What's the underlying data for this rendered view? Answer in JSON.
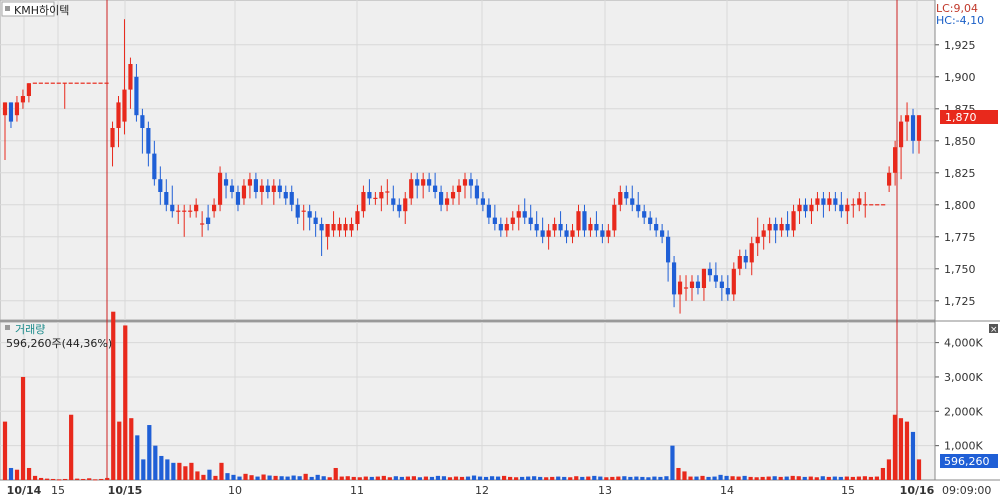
{
  "price_panel": {
    "title": "KMH하이텍",
    "lc_label": "LC:9,04",
    "hc_label": "HC:-4,10",
    "current_price_label": "1,870"
  },
  "volume_panel": {
    "title": "거래량",
    "current_volume_label": "596,260주(44,36%)",
    "current_volume_value_label": "596,260"
  },
  "time_axis": {
    "time_label": "09:09:00"
  },
  "colors": {
    "up": "#e8291c",
    "down": "#1f5fd6",
    "day_separator": "#cc2222",
    "grid": "#d8d8d8",
    "panel_bg": "#efefef",
    "current_price_bg": "#e8291c",
    "current_volume_bg": "#1f5fd6",
    "axis_text": "#333333",
    "title_text_blue": "#1a5fc7",
    "title_text_teal": "#1a8a8a"
  },
  "chart_data": [
    {
      "type": "candlestick",
      "ylim": [
        1710,
        1960
      ],
      "y_ticks": [
        1725,
        1750,
        1775,
        1800,
        1825,
        1850,
        1875,
        1900,
        1925
      ],
      "y_tick_labels": [
        "1,725",
        "1,750",
        "1,775",
        "1,800",
        "1,825",
        "1,850",
        "1,875",
        "1,900",
        "1,925"
      ],
      "x_ticks": [
        "10/14",
        "15",
        "10/15",
        "10",
        "11",
        "12",
        "13",
        "14",
        "15",
        "10/16"
      ],
      "ohlc": [
        [
          1870,
          1880,
          1835,
          1880
        ],
        [
          1880,
          1880,
          1860,
          1865
        ],
        [
          1870,
          1885,
          1865,
          1880
        ],
        [
          1880,
          1890,
          1875,
          1885
        ],
        [
          1885,
          1895,
          1880,
          1895
        ],
        [
          1895,
          1895,
          1895,
          1895
        ],
        [
          1895,
          1895,
          1895,
          1895
        ],
        [
          1895,
          1895,
          1895,
          1895
        ],
        [
          1895,
          1895,
          1895,
          1895
        ],
        [
          1895,
          1895,
          1895,
          1895
        ],
        [
          1895,
          1895,
          1875,
          1895
        ],
        [
          1895,
          1895,
          1895,
          1895
        ],
        [
          1895,
          1895,
          1895,
          1895
        ],
        [
          1895,
          1895,
          1895,
          1895
        ],
        [
          1895,
          1895,
          1895,
          1895
        ],
        [
          1895,
          1895,
          1895,
          1895
        ],
        [
          1895,
          1895,
          1895,
          1895
        ],
        [
          1895,
          1895,
          1895,
          1895
        ],
        [
          1845,
          1865,
          1830,
          1860
        ],
        [
          1860,
          1885,
          1845,
          1880
        ],
        [
          1865,
          1945,
          1855,
          1890
        ],
        [
          1890,
          1915,
          1875,
          1910
        ],
        [
          1900,
          1910,
          1865,
          1870
        ],
        [
          1870,
          1875,
          1840,
          1860
        ],
        [
          1860,
          1865,
          1830,
          1840
        ],
        [
          1840,
          1850,
          1815,
          1820
        ],
        [
          1820,
          1830,
          1800,
          1810
        ],
        [
          1810,
          1820,
          1795,
          1800
        ],
        [
          1800,
          1815,
          1790,
          1795
        ],
        [
          1795,
          1800,
          1785,
          1795
        ],
        [
          1795,
          1800,
          1775,
          1795
        ],
        [
          1795,
          1800,
          1790,
          1795
        ],
        [
          1795,
          1805,
          1790,
          1800
        ],
        [
          1785,
          1795,
          1775,
          1785
        ],
        [
          1790,
          1800,
          1780,
          1785
        ],
        [
          1795,
          1805,
          1790,
          1800
        ],
        [
          1800,
          1830,
          1795,
          1825
        ],
        [
          1820,
          1825,
          1805,
          1815
        ],
        [
          1815,
          1820,
          1805,
          1810
        ],
        [
          1810,
          1815,
          1795,
          1800
        ],
        [
          1805,
          1820,
          1800,
          1815
        ],
        [
          1815,
          1825,
          1805,
          1820
        ],
        [
          1820,
          1825,
          1805,
          1810
        ],
        [
          1810,
          1820,
          1800,
          1815
        ],
        [
          1815,
          1820,
          1805,
          1810
        ],
        [
          1810,
          1820,
          1800,
          1815
        ],
        [
          1815,
          1820,
          1805,
          1810
        ],
        [
          1810,
          1815,
          1800,
          1805
        ],
        [
          1810,
          1815,
          1795,
          1800
        ],
        [
          1800,
          1805,
          1785,
          1790
        ],
        [
          1795,
          1800,
          1780,
          1795
        ],
        [
          1795,
          1800,
          1780,
          1790
        ],
        [
          1790,
          1795,
          1775,
          1785
        ],
        [
          1785,
          1790,
          1760,
          1780
        ],
        [
          1775,
          1785,
          1765,
          1785
        ],
        [
          1780,
          1795,
          1775,
          1785
        ],
        [
          1780,
          1790,
          1775,
          1785
        ],
        [
          1780,
          1790,
          1775,
          1785
        ],
        [
          1780,
          1790,
          1775,
          1785
        ],
        [
          1785,
          1800,
          1780,
          1795
        ],
        [
          1795,
          1815,
          1790,
          1810
        ],
        [
          1810,
          1820,
          1800,
          1805
        ],
        [
          1805,
          1810,
          1800,
          1805
        ],
        [
          1805,
          1815,
          1795,
          1810
        ],
        [
          1810,
          1820,
          1800,
          1810
        ],
        [
          1805,
          1815,
          1795,
          1800
        ],
        [
          1800,
          1805,
          1790,
          1795
        ],
        [
          1795,
          1810,
          1785,
          1805
        ],
        [
          1805,
          1825,
          1800,
          1820
        ],
        [
          1820,
          1825,
          1805,
          1815
        ],
        [
          1815,
          1825,
          1805,
          1820
        ],
        [
          1820,
          1825,
          1810,
          1815
        ],
        [
          1815,
          1825,
          1805,
          1810
        ],
        [
          1810,
          1815,
          1795,
          1800
        ],
        [
          1800,
          1810,
          1795,
          1805
        ],
        [
          1805,
          1815,
          1800,
          1810
        ],
        [
          1810,
          1820,
          1800,
          1815
        ],
        [
          1815,
          1825,
          1805,
          1820
        ],
        [
          1820,
          1825,
          1805,
          1815
        ],
        [
          1815,
          1820,
          1800,
          1805
        ],
        [
          1805,
          1810,
          1795,
          1800
        ],
        [
          1800,
          1805,
          1785,
          1790
        ],
        [
          1790,
          1800,
          1780,
          1785
        ],
        [
          1785,
          1790,
          1775,
          1780
        ],
        [
          1780,
          1790,
          1775,
          1785
        ],
        [
          1785,
          1795,
          1780,
          1790
        ],
        [
          1790,
          1800,
          1780,
          1795
        ],
        [
          1795,
          1805,
          1785,
          1790
        ],
        [
          1790,
          1800,
          1780,
          1785
        ],
        [
          1785,
          1795,
          1775,
          1780
        ],
        [
          1780,
          1790,
          1770,
          1775
        ],
        [
          1775,
          1785,
          1765,
          1780
        ],
        [
          1780,
          1790,
          1775,
          1785
        ],
        [
          1785,
          1795,
          1775,
          1780
        ],
        [
          1780,
          1785,
          1770,
          1775
        ],
        [
          1775,
          1785,
          1770,
          1780
        ],
        [
          1780,
          1800,
          1775,
          1795
        ],
        [
          1795,
          1800,
          1775,
          1780
        ],
        [
          1780,
          1790,
          1775,
          1785
        ],
        [
          1785,
          1795,
          1775,
          1780
        ],
        [
          1780,
          1785,
          1770,
          1775
        ],
        [
          1775,
          1785,
          1770,
          1780
        ],
        [
          1780,
          1805,
          1775,
          1800
        ],
        [
          1800,
          1815,
          1795,
          1810
        ],
        [
          1810,
          1815,
          1800,
          1805
        ],
        [
          1805,
          1815,
          1795,
          1800
        ],
        [
          1800,
          1810,
          1790,
          1795
        ],
        [
          1795,
          1800,
          1785,
          1790
        ],
        [
          1790,
          1795,
          1780,
          1785
        ],
        [
          1785,
          1790,
          1775,
          1780
        ],
        [
          1780,
          1785,
          1770,
          1775
        ],
        [
          1775,
          1780,
          1740,
          1755
        ],
        [
          1755,
          1760,
          1720,
          1730
        ],
        [
          1730,
          1745,
          1715,
          1740
        ],
        [
          1735,
          1745,
          1725,
          1735
        ],
        [
          1735,
          1745,
          1725,
          1740
        ],
        [
          1740,
          1745,
          1730,
          1735
        ],
        [
          1735,
          1750,
          1725,
          1750
        ],
        [
          1750,
          1755,
          1740,
          1745
        ],
        [
          1745,
          1755,
          1735,
          1740
        ],
        [
          1740,
          1745,
          1725,
          1735
        ],
        [
          1735,
          1745,
          1725,
          1730
        ],
        [
          1730,
          1755,
          1725,
          1750
        ],
        [
          1750,
          1765,
          1745,
          1760
        ],
        [
          1760,
          1765,
          1750,
          1755
        ],
        [
          1755,
          1775,
          1745,
          1770
        ],
        [
          1770,
          1790,
          1760,
          1775
        ],
        [
          1775,
          1785,
          1765,
          1780
        ],
        [
          1780,
          1790,
          1770,
          1785
        ],
        [
          1785,
          1790,
          1770,
          1780
        ],
        [
          1780,
          1790,
          1775,
          1785
        ],
        [
          1785,
          1795,
          1775,
          1780
        ],
        [
          1780,
          1800,
          1775,
          1795
        ],
        [
          1795,
          1805,
          1785,
          1800
        ],
        [
          1800,
          1805,
          1790,
          1795
        ],
        [
          1795,
          1805,
          1785,
          1800
        ],
        [
          1800,
          1810,
          1795,
          1805
        ],
        [
          1805,
          1810,
          1790,
          1800
        ],
        [
          1800,
          1810,
          1795,
          1805
        ],
        [
          1805,
          1810,
          1795,
          1800
        ],
        [
          1800,
          1810,
          1790,
          1795
        ],
        [
          1795,
          1805,
          1785,
          1800
        ],
        [
          1800,
          1805,
          1790,
          1800
        ],
        [
          1800,
          1810,
          1795,
          1805
        ],
        [
          1800,
          1810,
          1790,
          1800
        ],
        [
          1800,
          1800,
          1800,
          1800
        ],
        [
          1800,
          1800,
          1800,
          1800
        ],
        [
          1800,
          1800,
          1800,
          1800
        ],
        [
          1815,
          1830,
          1810,
          1825
        ],
        [
          1825,
          1850,
          1815,
          1845
        ],
        [
          1845,
          1870,
          1820,
          1865
        ],
        [
          1865,
          1880,
          1850,
          1870
        ],
        [
          1870,
          1875,
          1840,
          1850
        ],
        [
          1850,
          1870,
          1840,
          1870
        ]
      ]
    },
    {
      "type": "bar",
      "ylim": [
        0,
        4600
      ],
      "y_ticks": [
        1000,
        2000,
        3000,
        4000
      ],
      "y_tick_labels": [
        "1,000K",
        "2,000K",
        "3,000K",
        "4,000K"
      ],
      "values": [
        1700,
        350,
        300,
        3000,
        350,
        120,
        60,
        40,
        30,
        20,
        30,
        1900,
        40,
        30,
        50,
        20,
        30,
        60,
        4900,
        1700,
        4500,
        1800,
        1300,
        600,
        1600,
        1000,
        700,
        600,
        500,
        500,
        400,
        500,
        250,
        150,
        300,
        120,
        500,
        200,
        150,
        100,
        180,
        140,
        100,
        160,
        130,
        120,
        110,
        100,
        130,
        110,
        180,
        90,
        150,
        110,
        80,
        350,
        100,
        110,
        90,
        80,
        100,
        90,
        100,
        120,
        80,
        110,
        90,
        100,
        110,
        80,
        100,
        90,
        120,
        110,
        80,
        100,
        90,
        100,
        130,
        100,
        90,
        110,
        100,
        120,
        90,
        80,
        90,
        100,
        110,
        90,
        80,
        90,
        100,
        90,
        80,
        110,
        90,
        100,
        120,
        100,
        80,
        90,
        100,
        110,
        90,
        100,
        90,
        80,
        100,
        90,
        110,
        1000,
        350,
        250,
        100,
        100,
        120,
        90,
        100,
        150,
        120,
        110,
        100,
        120,
        90,
        80,
        90,
        100,
        110,
        90,
        100,
        120,
        110,
        90,
        100,
        80,
        110,
        90,
        100,
        90,
        100,
        90,
        100,
        110,
        90,
        100,
        350,
        600,
        1900,
        1800,
        1700,
        1400,
        600
      ],
      "current_value": 596260
    }
  ]
}
